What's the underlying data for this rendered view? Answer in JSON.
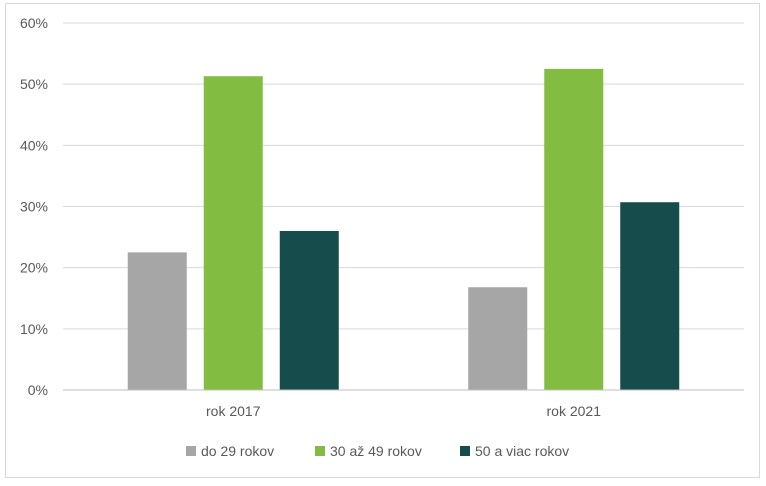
{
  "chart_data": {
    "type": "bar",
    "categories": [
      "rok 2017",
      "rok 2021"
    ],
    "series": [
      {
        "name": "do 29 rokov",
        "values": [
          22.5,
          16.8
        ],
        "color": "#a6a6a6"
      },
      {
        "name": "30 až 49 rokov",
        "values": [
          51.3,
          52.5
        ],
        "color": "#82bd41"
      },
      {
        "name": "50 a viac rokov",
        "values": [
          26.0,
          30.7
        ],
        "color": "#174c4c"
      }
    ],
    "ylim": [
      0,
      60
    ],
    "yticks": [
      "0%",
      "10%",
      "20%",
      "30%",
      "40%",
      "50%",
      "60%"
    ],
    "ytick_values": [
      0,
      10,
      20,
      30,
      40,
      50,
      60
    ],
    "grid": true,
    "legend_position": "bottom",
    "title": "",
    "xlabel": "",
    "ylabel": ""
  }
}
